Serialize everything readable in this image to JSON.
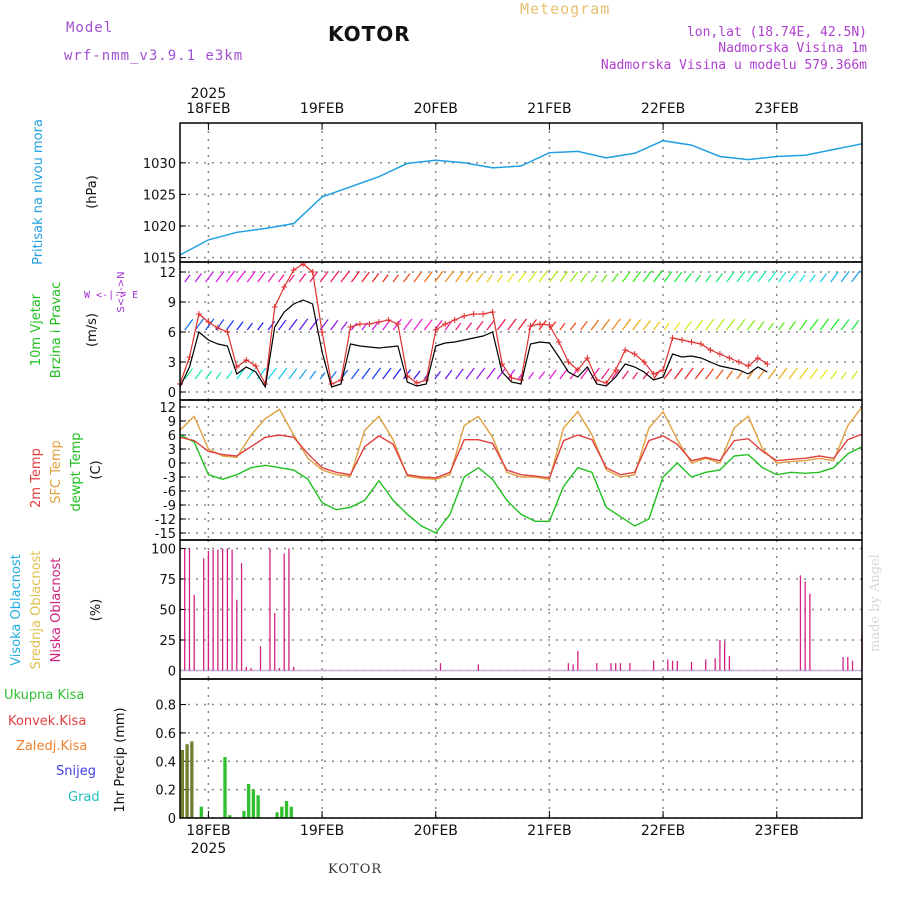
{
  "header": {
    "model_label": "Model",
    "model_name": "wrf-nmm_v3.9.1  e3km",
    "city": "KOTOR",
    "title": "Meteogram",
    "lonlat": "lon,lat (18.74E, 42.5N)",
    "elevation": "Nadmorska Visina 1m",
    "model_elevation": "Nadmorska Visina u modelu 579.366m"
  },
  "footer": {
    "city": "KOTOR",
    "made_by": "made by Angel"
  },
  "colors": {
    "pressure": "#20a0e0",
    "wind_speed": "#000000",
    "gust": "#e03030",
    "temp2m": "#e04040",
    "sfc_temp": "#e0a040",
    "dewpt": "#20c020",
    "high_cloud": "#20b0e0",
    "mid_cloud": "#e0c050",
    "low_cloud": "#d02080",
    "total_precip": "#30c030",
    "conv_precip": "#e04040",
    "frozen_precip": "#f08030",
    "snow": "#4040e0",
    "hail": "#20c0c0",
    "grid": "#888888"
  },
  "chart_data": [
    {
      "type": "line",
      "name": "pressure",
      "ylabel": "Pritisak na nivou mora",
      "unit": "(hPa)",
      "ylim": [
        1014.3,
        1036.3
      ],
      "yticks": [
        1015,
        1020,
        1025,
        1030
      ],
      "x_hours": [
        0,
        6,
        12,
        18,
        24,
        30,
        36,
        42,
        48,
        54,
        60,
        66,
        72,
        78,
        84,
        90,
        96,
        102,
        108,
        114,
        120,
        126,
        132,
        138,
        144
      ],
      "values": [
        1015.4,
        1017.8,
        1019.0,
        1019.6,
        1020.4,
        1024.6,
        1026.2,
        1027.8,
        1029.9,
        1030.4,
        1030.0,
        1029.2,
        1029.5,
        1031.6,
        1031.8,
        1030.8,
        1031.5,
        1033.5,
        1032.8,
        1031.0,
        1030.5,
        1031.0,
        1031.2,
        1032.1,
        1033.0
      ]
    },
    {
      "type": "line",
      "name": "wind",
      "ylabel_1": "10m Vjetar",
      "ylabel_2": "Brzina i Pravac",
      "unit": "(m/s)",
      "compass_label": "W <-|-> E",
      "compass_label_v": "S<-|->N",
      "ylim": [
        -0.8,
        13.0
      ],
      "yticks": [
        0,
        3,
        6,
        9,
        12
      ],
      "x_hours": [
        0,
        2,
        4,
        6,
        8,
        10,
        12,
        14,
        16,
        18,
        20,
        22,
        24,
        26,
        28,
        30,
        32,
        34,
        36,
        38,
        40,
        42,
        44,
        46,
        48,
        50,
        52,
        54,
        56,
        58,
        60,
        62,
        64,
        66,
        68,
        70,
        72,
        74,
        76,
        78,
        80,
        82,
        84,
        86,
        88,
        90,
        92,
        94,
        96,
        98,
        100,
        102,
        104,
        106,
        108,
        110,
        112,
        114,
        116,
        118,
        120,
        122,
        124,
        126,
        128,
        130,
        132,
        134,
        136,
        138,
        140,
        142,
        144
      ],
      "series": [
        {
          "name": "speed",
          "values": [
            0.5,
            2.5,
            6.0,
            5.2,
            4.8,
            4.6,
            1.8,
            2.5,
            2.0,
            0.5,
            6.5,
            8.0,
            8.8,
            9.2,
            8.8,
            4.0,
            0.5,
            0.8,
            4.8,
            4.6,
            4.5,
            4.4,
            4.5,
            4.6,
            1.0,
            0.6,
            0.8,
            4.6,
            4.9,
            5.0,
            5.2,
            5.4,
            5.6,
            6.0,
            2.0,
            1.0,
            0.8,
            4.8,
            5.0,
            4.9,
            3.5,
            2.0,
            1.5,
            2.5,
            0.8,
            0.6,
            1.5,
            2.8,
            2.5,
            2.0,
            1.2,
            1.5,
            3.8,
            3.5,
            3.6,
            3.4,
            3.0,
            2.6,
            2.4,
            2.2,
            1.8,
            2.5,
            2.0
          ]
        },
        {
          "name": "gust",
          "values": [
            0.8,
            3.5,
            7.8,
            7.0,
            6.4,
            6.0,
            2.5,
            3.2,
            2.6,
            0.8,
            8.5,
            10.5,
            12.2,
            12.8,
            12.0,
            6.0,
            0.8,
            1.2,
            6.5,
            6.8,
            6.8,
            7.0,
            7.2,
            6.8,
            1.6,
            0.9,
            1.2,
            6.2,
            6.8,
            7.2,
            7.6,
            7.8,
            7.8,
            8.0,
            2.8,
            1.4,
            1.2,
            6.6,
            6.8,
            6.7,
            5.0,
            3.0,
            2.2,
            3.4,
            1.2,
            0.9,
            2.2,
            4.2,
            3.8,
            3.0,
            1.8,
            2.2,
            5.4,
            5.2,
            5.0,
            4.8,
            4.2,
            3.8,
            3.4,
            3.0,
            2.6,
            3.4,
            2.8
          ]
        }
      ]
    },
    {
      "type": "line",
      "name": "temperature",
      "ylabel_1": "2m Temp",
      "ylabel_2": "SFC Temp",
      "ylabel_3": "dewpt Temp",
      "unit": "(C)",
      "ylim": [
        -16.5,
        13.5
      ],
      "yticks": [
        -15,
        -12,
        -9,
        -6,
        -3,
        0,
        3,
        6,
        9,
        12
      ],
      "x_hours": [
        0,
        3,
        6,
        9,
        12,
        15,
        18,
        21,
        24,
        27,
        30,
        33,
        36,
        39,
        42,
        45,
        48,
        51,
        54,
        57,
        60,
        63,
        66,
        69,
        72,
        75,
        78,
        81,
        84,
        87,
        90,
        93,
        96,
        99,
        102,
        105,
        108,
        111,
        114,
        117,
        120,
        123,
        126,
        129,
        132,
        135,
        138,
        141,
        144
      ],
      "series": [
        {
          "name": "t2m",
          "values": [
            5.5,
            4.8,
            2.5,
            1.8,
            1.5,
            3.5,
            5.5,
            6.0,
            5.5,
            2.0,
            -1.0,
            -2.0,
            -2.5,
            3.5,
            5.8,
            4.0,
            -2.5,
            -3.0,
            -3.2,
            -2.0,
            5.0,
            5.0,
            4.2,
            -1.5,
            -2.5,
            -2.8,
            -3.2,
            4.8,
            6.0,
            5.0,
            -1.0,
            -2.5,
            -2.0,
            4.8,
            5.8,
            4.0,
            0.5,
            1.2,
            0.5,
            4.8,
            5.2,
            2.5,
            0.5,
            0.8,
            1.0,
            1.5,
            1.0,
            5.0,
            6.2
          ]
        },
        {
          "name": "sfc",
          "values": [
            7.0,
            10.0,
            3.0,
            1.5,
            1.2,
            6.0,
            9.5,
            11.5,
            6.0,
            1.0,
            -1.5,
            -2.5,
            -2.8,
            7.0,
            10.0,
            5.0,
            -2.8,
            -3.3,
            -3.5,
            -2.5,
            8.0,
            10.0,
            5.5,
            -2.0,
            -3.0,
            -3.0,
            -3.5,
            7.5,
            11.0,
            6.0,
            -1.5,
            -3.0,
            -2.5,
            7.5,
            11.0,
            5.0,
            0.0,
            1.0,
            0.0,
            7.5,
            10.0,
            3.0,
            0.0,
            0.3,
            0.5,
            1.0,
            0.5,
            8.0,
            12.0
          ]
        },
        {
          "name": "dewpt",
          "values": [
            6.0,
            4.5,
            -2.5,
            -3.5,
            -2.5,
            -1.0,
            -0.5,
            -1.0,
            -1.5,
            -3.5,
            -8.5,
            -10.0,
            -9.5,
            -8.0,
            -3.8,
            -8.0,
            -11.0,
            -13.5,
            -15.0,
            -11.0,
            -3.0,
            -1.0,
            -3.5,
            -8.0,
            -11.0,
            -12.5,
            -12.5,
            -5.0,
            -1.0,
            -2.0,
            -9.5,
            -11.5,
            -13.5,
            -12.0,
            -3.0,
            0.0,
            -3.0,
            -2.0,
            -1.5,
            1.5,
            1.8,
            -1.0,
            -2.5,
            -2.0,
            -2.2,
            -2.0,
            -1.0,
            2.0,
            3.5
          ]
        }
      ]
    },
    {
      "type": "bar",
      "name": "cloud",
      "ylabel_1": "Visoka Oblacnost",
      "ylabel_2": "Srednja Oblacnost",
      "ylabel_3": "Niska Oblacnost",
      "unit": "(%)",
      "ylim": [
        -7,
        107
      ],
      "yticks": [
        0,
        25,
        50,
        75,
        100
      ],
      "low_hours": [
        1,
        2,
        3,
        5,
        6,
        7,
        8,
        9,
        10,
        11,
        12,
        13,
        14,
        15,
        17,
        19,
        20,
        21,
        22,
        23,
        24,
        55,
        63,
        82,
        83,
        84,
        88,
        91,
        92,
        93,
        95,
        100,
        103,
        104,
        105,
        108,
        111,
        113,
        114,
        115,
        116,
        131,
        132,
        133,
        140,
        141,
        142,
        144
      ],
      "low_values": [
        100,
        100,
        62,
        92,
        98,
        99,
        99,
        100,
        100,
        99,
        58,
        88,
        3,
        2,
        20,
        100,
        47,
        2,
        96,
        100,
        3,
        6,
        5,
        6,
        5,
        16,
        6,
        6,
        6,
        6,
        6,
        8,
        9,
        8,
        8,
        7,
        9,
        10,
        25,
        24,
        12,
        78,
        73,
        63,
        11,
        11,
        8,
        31
      ]
    },
    {
      "type": "bar",
      "name": "precip",
      "labels": [
        "Ukupna  Kisa",
        "Konvek.Kisa",
        "Zaledj.Kisa",
        "Snijeg",
        "Grad"
      ],
      "ylabel": "1hr Precip (mm)",
      "ylim": [
        0,
        0.98
      ],
      "yticks": [
        0,
        0.2,
        0.4,
        0.6,
        0.8
      ],
      "hours": [
        0,
        1,
        2,
        3,
        4,
        5,
        6,
        7,
        8,
        9,
        10,
        11,
        12,
        13,
        14,
        15,
        16,
        17,
        18,
        19,
        20,
        21,
        22,
        23
      ],
      "total": [
        0.48,
        0.52,
        0.54,
        0.0,
        0.08,
        0.0,
        0.0,
        0.0,
        0.0,
        0.43,
        0.02,
        0.0,
        0.0,
        0.05,
        0.24,
        0.2,
        0.16,
        0.0,
        0.0,
        0.0,
        0.04,
        0.08,
        0.12,
        0.08
      ]
    }
  ],
  "x_axis": {
    "top_year": "2025",
    "bottom_year": "2025",
    "days": [
      "18FEB",
      "19FEB",
      "20FEB",
      "21FEB",
      "22FEB",
      "23FEB"
    ],
    "first_day_hour": 6,
    "total_hours": 144
  }
}
